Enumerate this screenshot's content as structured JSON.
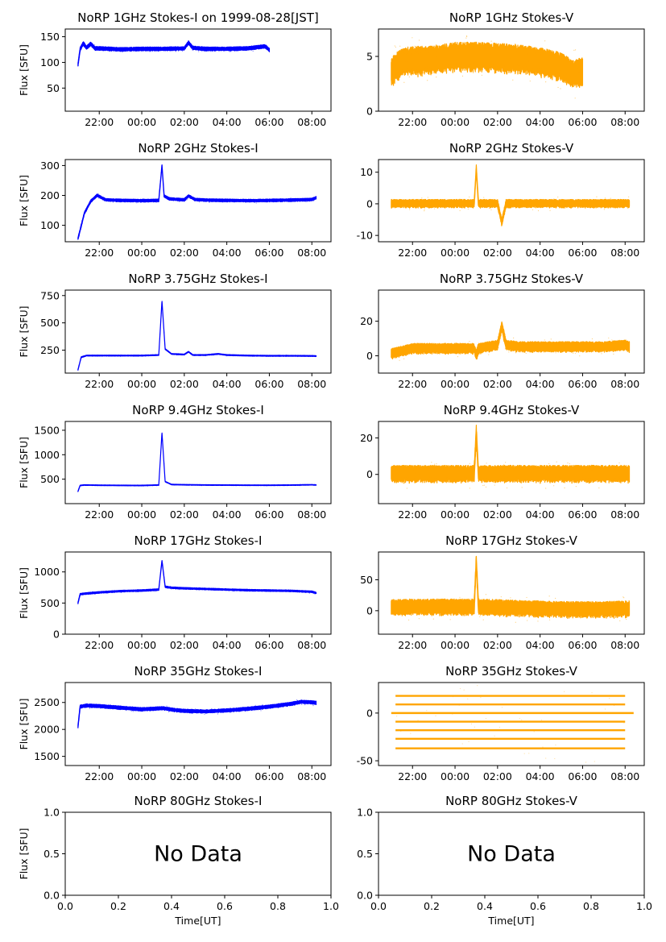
{
  "figure": {
    "title": "NoRP 1GHz Stokes-I on 1999-08-28[JST]",
    "x_tick_labels": [
      "22:00",
      "00:00",
      "02:00",
      "04:00",
      "06:00",
      "08:00"
    ]
  },
  "colors": {
    "stokes_i": "#0000ff",
    "stokes_v": "#ffa500"
  },
  "chart_data": [
    {
      "id": "p1i",
      "type": "line",
      "title": "NoRP 1GHz Stokes-I on 1999-08-28[JST]",
      "xlabel": "",
      "ylabel": "Flux [SFU]",
      "xlim": [
        20.4,
        32.9
      ],
      "ylim": [
        5,
        165
      ],
      "yticks": [
        50,
        100,
        150
      ],
      "series": [
        {
          "x": [
            21.0,
            21.1,
            21.25,
            21.4,
            21.6,
            21.8,
            22.0,
            23.0,
            24.0,
            25.0,
            26.0,
            26.2,
            26.4,
            27.0,
            28.0,
            29.0,
            29.8,
            30.0
          ],
          "y": [
            95,
            125,
            137,
            128,
            136,
            127,
            127,
            125,
            126,
            126,
            127,
            138,
            128,
            126,
            126,
            127,
            131,
            124
          ],
          "noise": 4
        }
      ]
    },
    {
      "id": "p1v",
      "type": "line",
      "title": "NoRP 1GHz Stokes-V",
      "xlabel": "",
      "ylabel": "",
      "xlim": [
        20.4,
        32.9
      ],
      "ylim": [
        0,
        7.5
      ],
      "yticks": [
        0,
        5
      ],
      "series": [
        {
          "x": [
            21.0,
            21.5,
            22.0,
            23.0,
            24.0,
            25.0,
            26.0,
            27.0,
            28.0,
            29.0,
            29.5,
            30.0
          ],
          "y": [
            3.5,
            4.4,
            4.5,
            4.6,
            4.9,
            4.9,
            4.8,
            4.7,
            4.4,
            4.0,
            3.3,
            3.5
          ],
          "noise": 1.4
        }
      ]
    },
    {
      "id": "p2i",
      "type": "line",
      "title": "NoRP 2GHz Stokes-I",
      "xlabel": "",
      "ylabel": "Flux [SFU]",
      "xlim": [
        20.4,
        32.9
      ],
      "ylim": [
        45,
        320
      ],
      "yticks": [
        100,
        200,
        300
      ],
      "series": [
        {
          "x": [
            21.0,
            21.3,
            21.6,
            21.9,
            22.3,
            23.0,
            24.0,
            24.8,
            24.95,
            25.05,
            25.3,
            26.0,
            26.2,
            26.5,
            27.0,
            28.0,
            29.0,
            30.0,
            31.0,
            32.0,
            32.2
          ],
          "y": [
            55,
            140,
            180,
            200,
            185,
            183,
            182,
            183,
            300,
            198,
            188,
            185,
            198,
            186,
            184,
            183,
            182,
            183,
            184,
            186,
            192
          ],
          "noise": 5
        }
      ]
    },
    {
      "id": "p2v",
      "type": "line",
      "title": "NoRP 2GHz Stokes-V",
      "xlabel": "",
      "ylabel": "",
      "xlim": [
        20.4,
        32.9
      ],
      "ylim": [
        -12,
        14
      ],
      "yticks": [
        -10,
        0,
        10
      ],
      "series": [
        {
          "x": [
            21.0,
            22.0,
            23.0,
            24.0,
            24.9,
            25.0,
            25.1,
            26.0,
            26.2,
            26.4,
            27.0,
            28.0,
            29.0,
            30.0,
            31.0,
            32.0,
            32.2
          ],
          "y": [
            0,
            0,
            0,
            0,
            0,
            11,
            0,
            0,
            -6,
            0,
            0,
            0,
            0,
            0,
            0,
            0,
            0
          ],
          "noise": 1.4
        }
      ]
    },
    {
      "id": "p3i",
      "type": "line",
      "title": "NoRP 3.75GHz Stokes-I",
      "xlabel": "",
      "ylabel": "Flux [SFU]",
      "xlim": [
        20.4,
        32.9
      ],
      "ylim": [
        40,
        800
      ],
      "yticks": [
        250,
        500,
        750
      ],
      "series": [
        {
          "x": [
            21.0,
            21.15,
            21.4,
            22.0,
            23.0,
            24.0,
            24.8,
            24.95,
            25.1,
            25.4,
            26.0,
            26.2,
            26.4,
            27.0,
            27.6,
            28.0,
            29.0,
            30.0,
            31.0,
            32.0,
            32.2
          ],
          "y": [
            70,
            185,
            200,
            200,
            200,
            200,
            205,
            700,
            260,
            215,
            210,
            235,
            205,
            205,
            215,
            205,
            200,
            198,
            198,
            197,
            195
          ],
          "noise": 5
        }
      ]
    },
    {
      "id": "p3v",
      "type": "line",
      "title": "NoRP 3.75GHz Stokes-V",
      "xlabel": "",
      "ylabel": "",
      "xlim": [
        20.4,
        32.9
      ],
      "ylim": [
        -10,
        38
      ],
      "yticks": [
        0,
        20
      ],
      "series": [
        {
          "x": [
            21.0,
            22.0,
            23.0,
            24.0,
            24.9,
            25.0,
            25.1,
            26.0,
            26.2,
            26.4,
            27.0,
            28.0,
            29.0,
            30.0,
            31.0,
            32.0,
            32.2
          ],
          "y": [
            1,
            4,
            4,
            4,
            4,
            0,
            4,
            6,
            17,
            6,
            5,
            5,
            5,
            5,
            5,
            6,
            5
          ],
          "noise": 3.2
        }
      ]
    },
    {
      "id": "p4i",
      "type": "line",
      "title": "NoRP 9.4GHz Stokes-I",
      "xlabel": "",
      "ylabel": "Flux [SFU]",
      "xlim": [
        20.4,
        32.9
      ],
      "ylim": [
        0,
        1680
      ],
      "yticks": [
        500,
        1000,
        1500
      ],
      "series": [
        {
          "x": [
            21.0,
            21.1,
            21.3,
            22.0,
            23.0,
            24.0,
            24.8,
            24.95,
            25.1,
            25.4,
            26.0,
            27.0,
            28.0,
            29.0,
            30.0,
            31.0,
            32.0,
            32.2
          ],
          "y": [
            250,
            370,
            380,
            375,
            372,
            370,
            380,
            1450,
            450,
            390,
            385,
            380,
            378,
            376,
            375,
            378,
            385,
            380
          ],
          "noise": 8
        }
      ]
    },
    {
      "id": "p4v",
      "type": "line",
      "title": "NoRP 9.4GHz Stokes-V",
      "xlabel": "",
      "ylabel": "",
      "xlim": [
        20.4,
        32.9
      ],
      "ylim": [
        -16,
        29
      ],
      "yticks": [
        0,
        20
      ],
      "series": [
        {
          "x": [
            21.0,
            22.0,
            23.0,
            24.0,
            24.9,
            25.0,
            25.1,
            26.0,
            27.0,
            28.0,
            29.0,
            30.0,
            31.0,
            32.0,
            32.2
          ],
          "y": [
            0,
            0,
            0,
            0,
            0,
            22,
            0,
            0,
            0,
            0,
            0,
            0,
            0,
            0,
            0
          ],
          "noise": 5
        }
      ]
    },
    {
      "id": "p5i",
      "type": "line",
      "title": "NoRP 17GHz Stokes-I",
      "xlabel": "",
      "ylabel": "Flux [SFU]",
      "xlim": [
        20.4,
        32.9
      ],
      "ylim": [
        0,
        1320
      ],
      "yticks": [
        0,
        500,
        1000
      ],
      "series": [
        {
          "x": [
            21.0,
            21.1,
            21.3,
            22.0,
            23.0,
            24.0,
            24.8,
            24.95,
            25.1,
            25.4,
            26.0,
            27.0,
            28.0,
            29.0,
            30.0,
            31.0,
            32.0,
            32.2
          ],
          "y": [
            500,
            640,
            650,
            670,
            690,
            700,
            715,
            1180,
            760,
            745,
            735,
            725,
            715,
            705,
            700,
            695,
            680,
            660
          ],
          "noise": 15
        }
      ]
    },
    {
      "id": "p5v",
      "type": "line",
      "title": "NoRP 17GHz Stokes-V",
      "xlabel": "",
      "ylabel": "",
      "xlim": [
        20.4,
        32.9
      ],
      "ylim": [
        -38,
        95
      ],
      "yticks": [
        0,
        50
      ],
      "series": [
        {
          "x": [
            21.0,
            22.0,
            23.0,
            24.0,
            24.9,
            25.0,
            25.1,
            26.0,
            27.0,
            28.0,
            29.0,
            30.0,
            31.0,
            32.0,
            32.2
          ],
          "y": [
            4,
            5,
            5,
            5,
            5,
            80,
            5,
            4,
            3,
            2,
            1,
            1,
            1,
            2,
            2
          ],
          "noise": 14
        }
      ]
    },
    {
      "id": "p6i",
      "type": "line",
      "title": "NoRP 35GHz Stokes-I",
      "xlabel": "",
      "ylabel": "Flux [SFU]",
      "xlim": [
        20.4,
        32.9
      ],
      "ylim": [
        1330,
        2870
      ],
      "yticks": [
        1500,
        2000,
        2500
      ],
      "series": [
        {
          "x": [
            21.0,
            21.1,
            21.4,
            22.0,
            23.0,
            24.0,
            25.0,
            25.5,
            26.0,
            27.0,
            28.0,
            29.0,
            30.0,
            31.0,
            31.5,
            32.0,
            32.2
          ],
          "y": [
            2050,
            2420,
            2440,
            2430,
            2400,
            2370,
            2390,
            2360,
            2340,
            2330,
            2350,
            2380,
            2420,
            2470,
            2510,
            2500,
            2490
          ],
          "noise": 35
        }
      ]
    },
    {
      "id": "p6v",
      "type": "scatter",
      "title": "NoRP 35GHz Stokes-V",
      "xlabel": "",
      "ylabel": "",
      "xlim": [
        20.4,
        32.9
      ],
      "ylim": [
        -55,
        32
      ],
      "yticks": [
        -50,
        0
      ],
      "levels": [
        18,
        9,
        0,
        -9,
        -18,
        -27,
        -37
      ],
      "levels_x": [
        [
          21.2,
          32.0
        ],
        [
          21.2,
          32.0
        ],
        [
          21.0,
          32.4
        ],
        [
          21.2,
          32.0
        ],
        [
          21.2,
          32.0
        ],
        [
          21.2,
          32.0
        ],
        [
          21.2,
          32.0
        ]
      ]
    },
    {
      "id": "p7i",
      "type": "line",
      "title": "NoRP 80GHz Stokes-I",
      "xlabel": "Time[UT]",
      "ylabel": "Flux [SFU]",
      "xlim": [
        0.0,
        1.0
      ],
      "ylim": [
        0.0,
        1.0
      ],
      "xticks": [
        "0.0",
        "0.2",
        "0.4",
        "0.6",
        "0.8",
        "1.0"
      ],
      "yticks": [
        "0.0",
        "0.5",
        "1.0"
      ],
      "annotation": "No Data"
    },
    {
      "id": "p7v",
      "type": "line",
      "title": "NoRP 80GHz Stokes-V",
      "xlabel": "Time[UT]",
      "ylabel": "",
      "xlim": [
        0.0,
        1.0
      ],
      "ylim": [
        0.0,
        1.0
      ],
      "xticks": [
        "0.0",
        "0.2",
        "0.4",
        "0.6",
        "0.8",
        "1.0"
      ],
      "yticks": [
        "0.0",
        "0.5",
        "1.0"
      ],
      "annotation": "No Data"
    }
  ]
}
